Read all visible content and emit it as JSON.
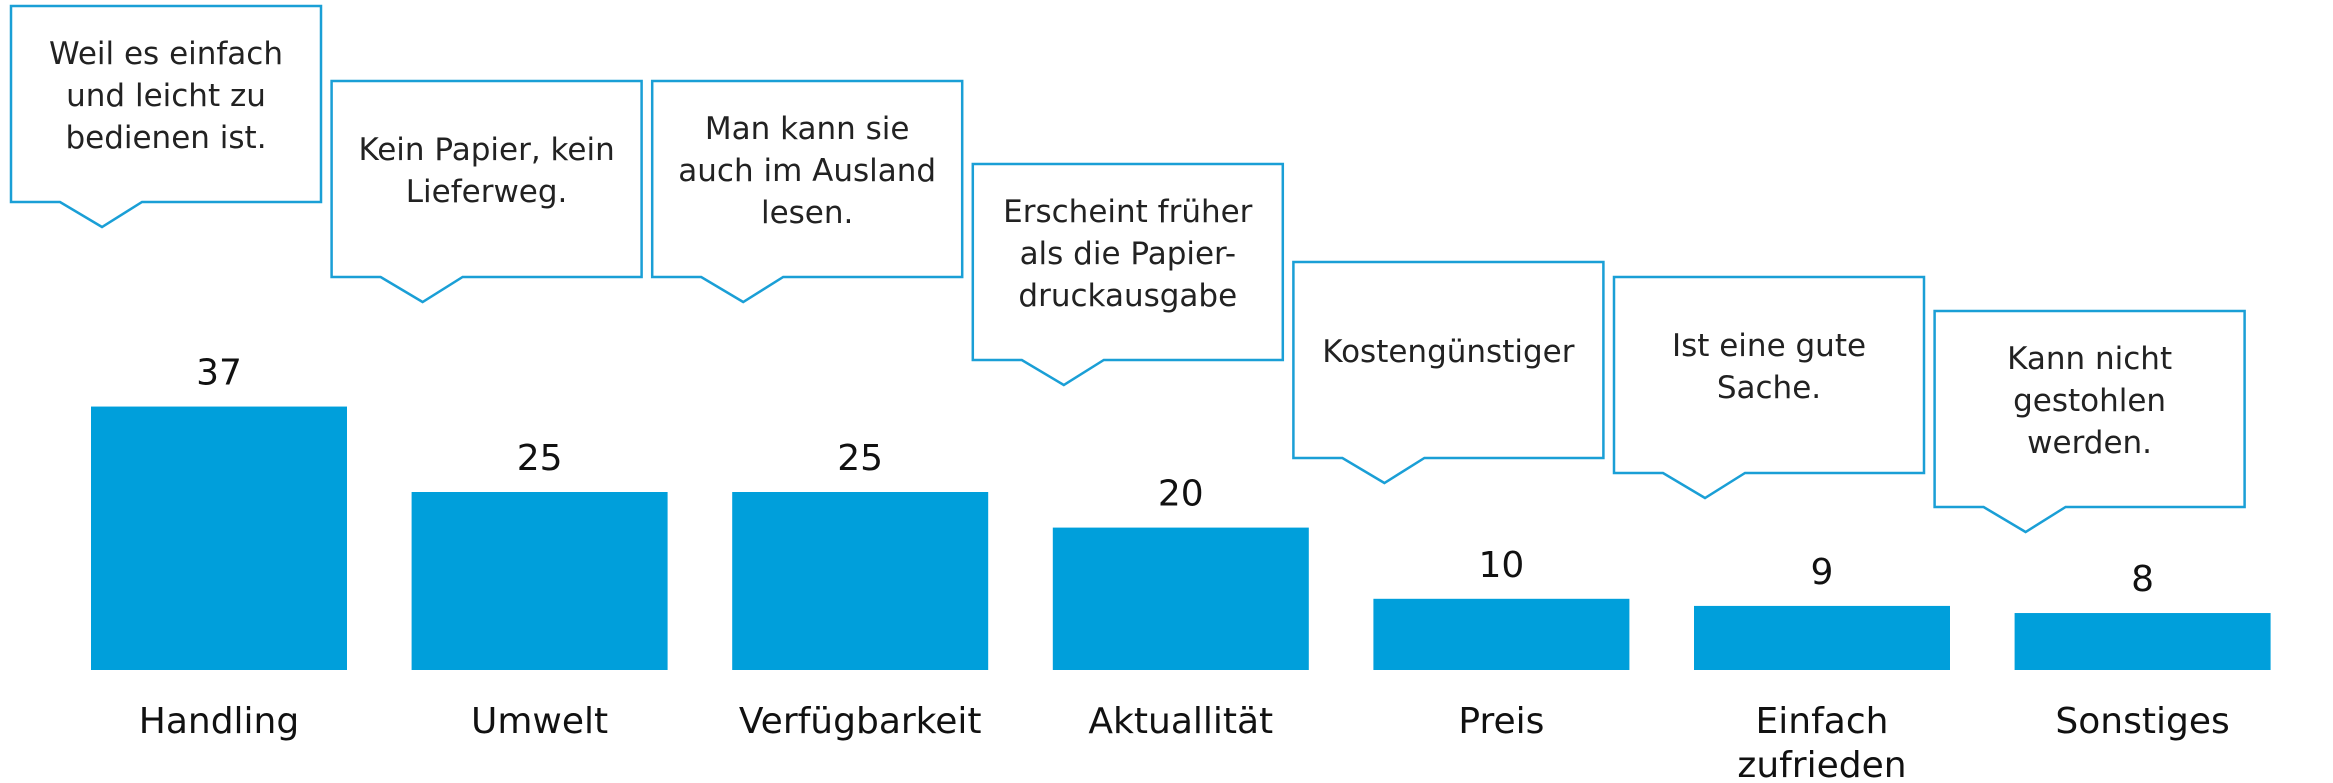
{
  "chart_data": {
    "type": "bar",
    "categories": [
      "Handling",
      "Umwelt",
      "Verfügbarkeit",
      "Aktuallität",
      "Preis",
      "Einfach zufrieden",
      "Sonstiges"
    ],
    "values": [
      37,
      25,
      25,
      20,
      10,
      9,
      8
    ],
    "color": "#009fdb",
    "annotations": [
      "Weil es einfach und leicht zu bedienen ist.",
      "Kein Papier, kein Lieferweg.",
      "Man kann sie auch im Ausland lesen.",
      "Erscheint früher als die Papier-druckausgabe",
      "Kostengünstiger",
      "Ist eine gute Sache.",
      "Kann nicht gestohlen werden."
    ]
  }
}
